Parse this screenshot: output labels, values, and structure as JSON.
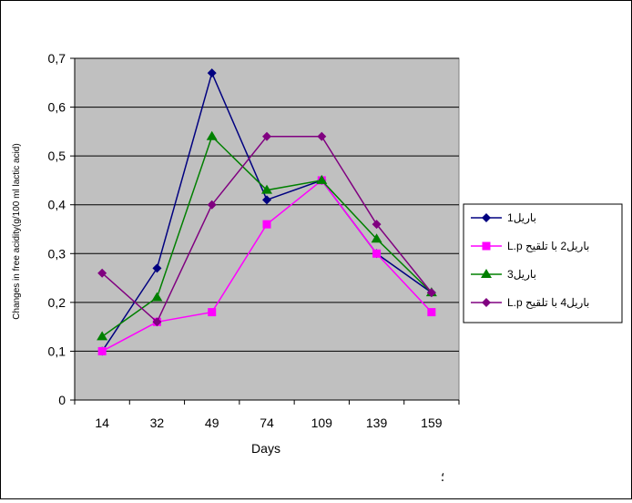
{
  "chart_data": {
    "type": "line",
    "title": "",
    "xlabel": "Days",
    "ylabel": "Changes in free acidity(g/100 ml lactic acid)",
    "categories": [
      "14",
      "32",
      "49",
      "74",
      "109",
      "139",
      "159"
    ],
    "y_ticks": [
      "0",
      "0,1",
      "0,2",
      "0,3",
      "0,4",
      "0,5",
      "0,6",
      "0,7"
    ],
    "ylim": [
      0,
      0.7
    ],
    "grid": true,
    "plot_background": "#c0c0c0",
    "legend_position": "right",
    "footnote": "؛",
    "series": [
      {
        "name": "باريل1",
        "color": "#000080",
        "marker": "diamond",
        "values": [
          0.1,
          0.27,
          0.67,
          0.41,
          0.45,
          0.3,
          0.22
        ]
      },
      {
        "name": "باريل2 با تلقيح L.p",
        "color": "#ff00ff",
        "marker": "square",
        "values": [
          0.1,
          0.16,
          0.18,
          0.36,
          0.45,
          0.3,
          0.18
        ]
      },
      {
        "name": "باريل3",
        "color": "#008000",
        "marker": "triangle",
        "values": [
          0.13,
          0.21,
          0.54,
          0.43,
          0.45,
          0.33,
          0.22
        ]
      },
      {
        "name": "باريل4 با تلقيح L.p",
        "color": "#800080",
        "marker": "diamond",
        "values": [
          0.26,
          0.16,
          0.4,
          0.54,
          0.54,
          0.36,
          0.22
        ]
      }
    ]
  }
}
